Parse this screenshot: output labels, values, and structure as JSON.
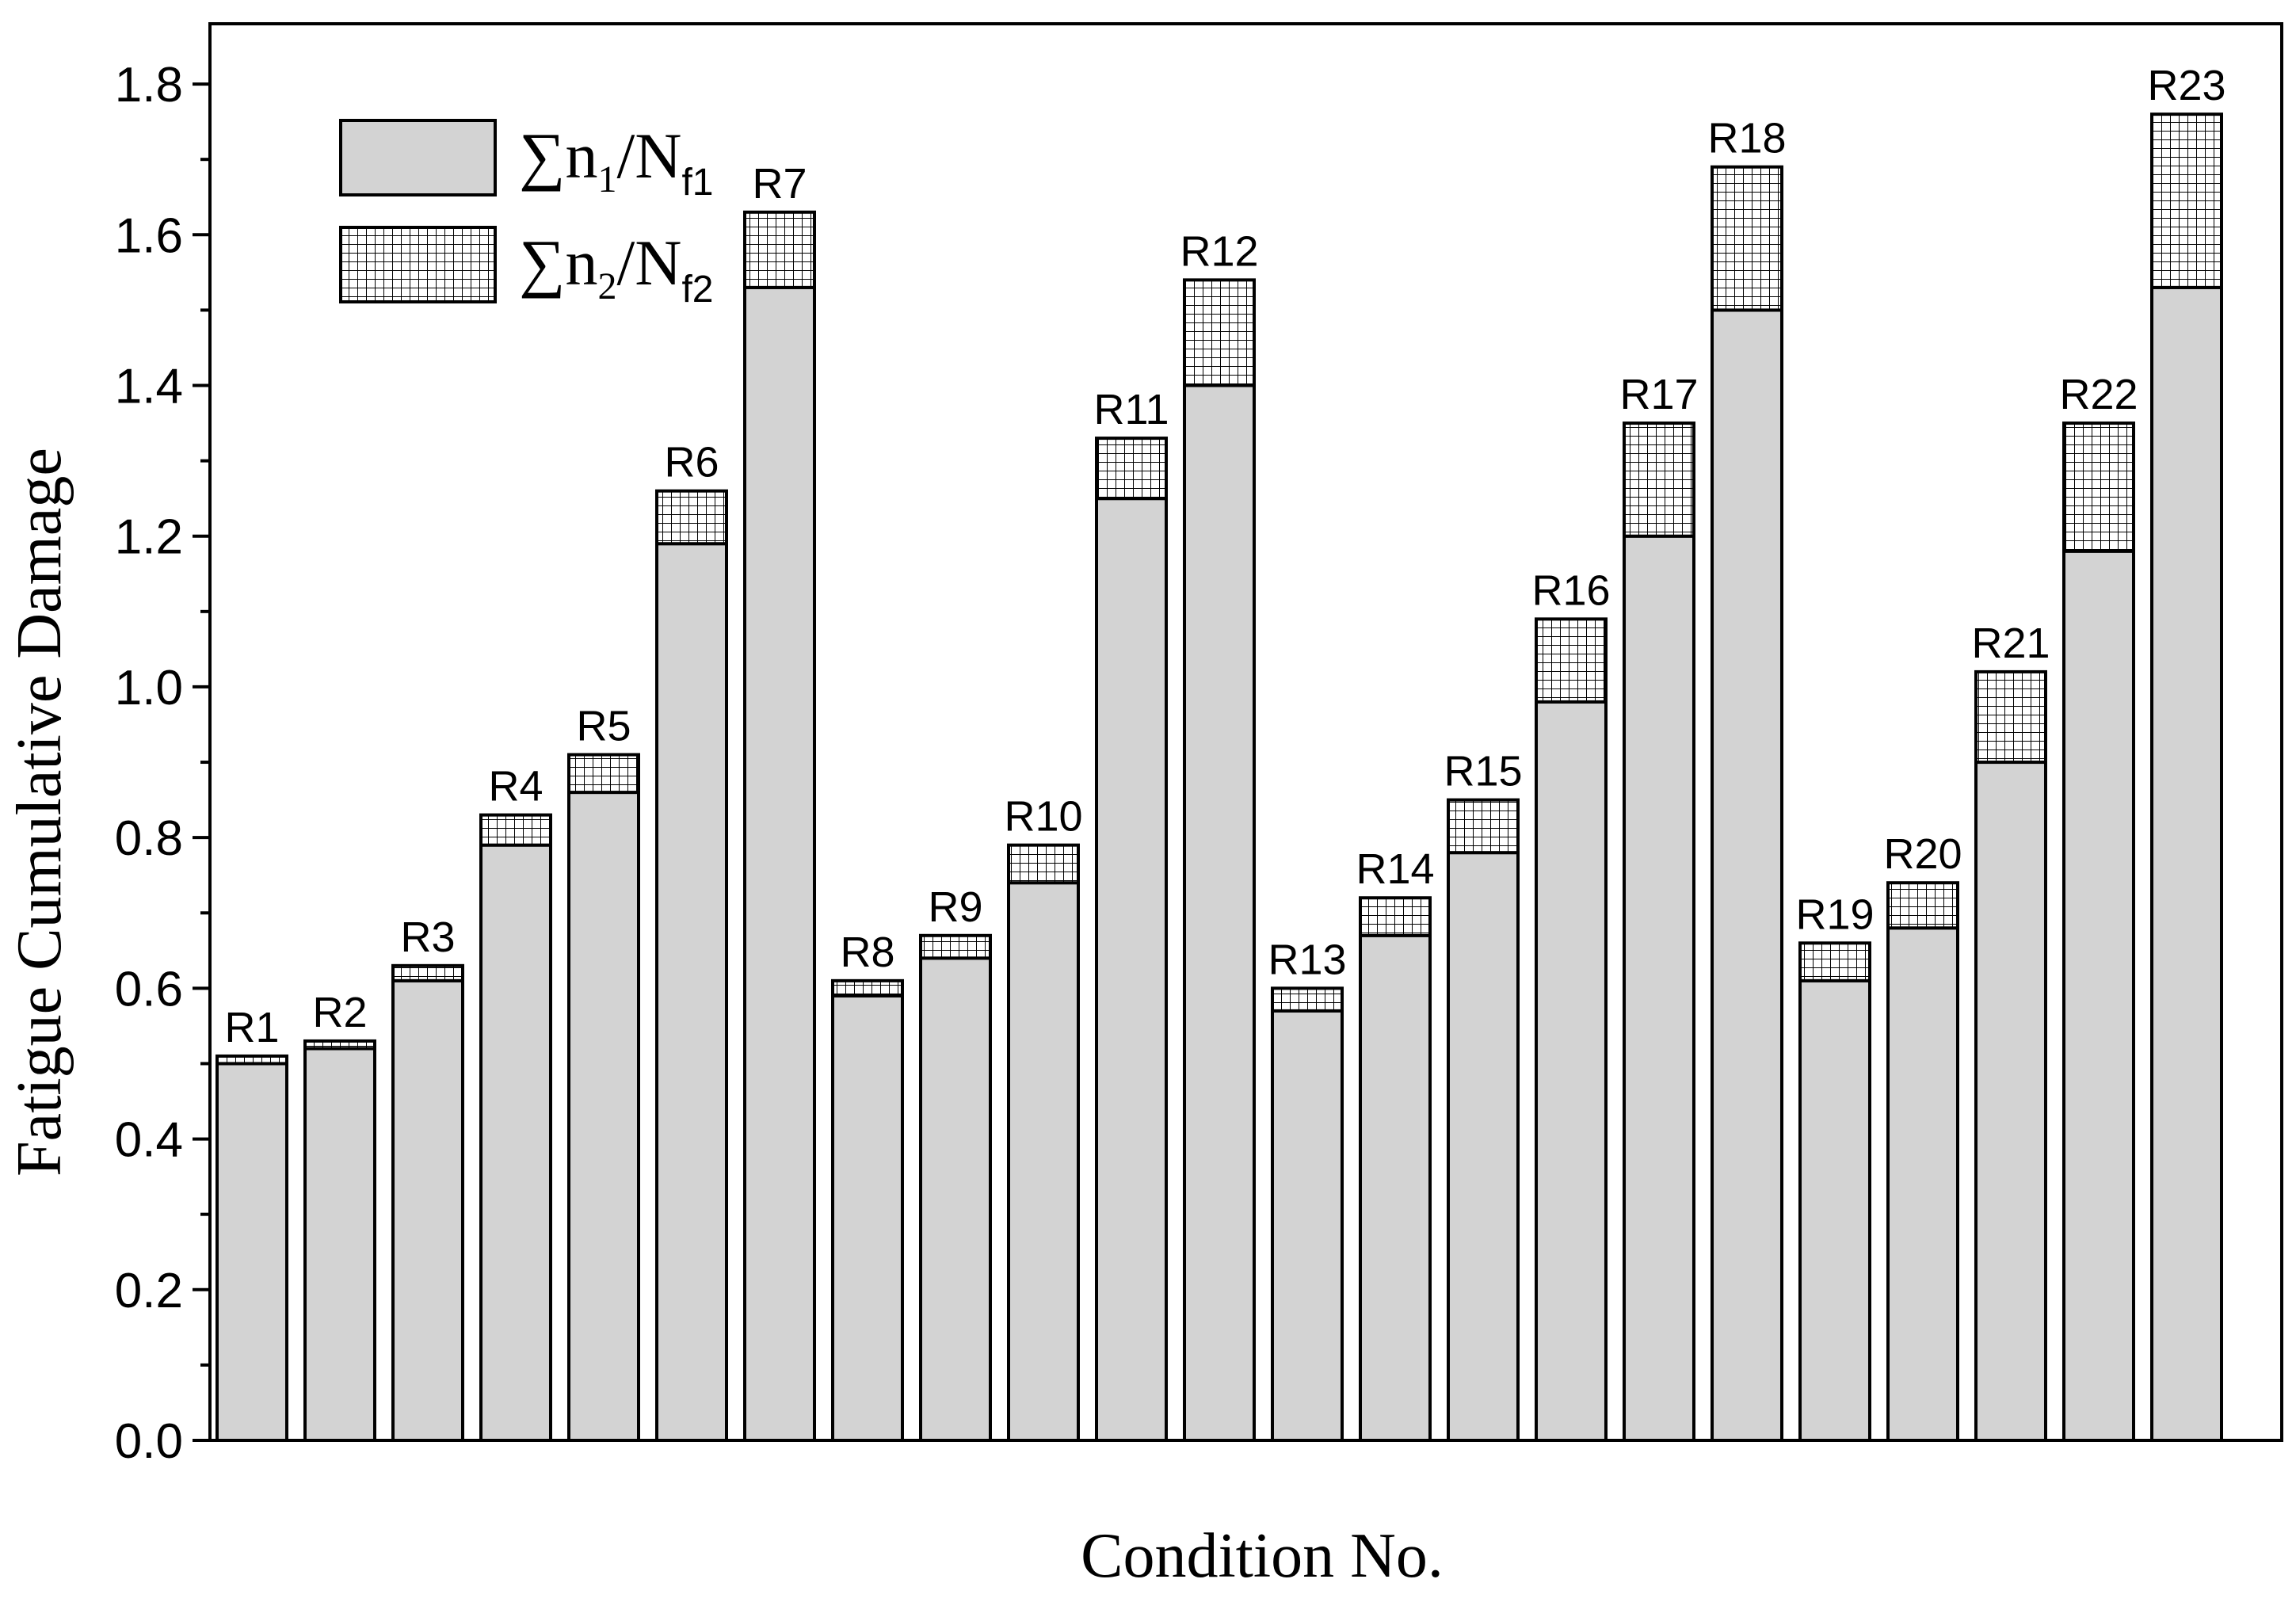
{
  "chart_data": {
    "type": "bar",
    "stacked": true,
    "xlabel": "Condition No.",
    "ylabel": "Fatigue Cumulative Damage",
    "ylim": [
      0.0,
      1.88
    ],
    "yticks": [
      "0.0",
      "0.2",
      "0.4",
      "0.6",
      "0.8",
      "1.0",
      "1.2",
      "1.4",
      "1.6",
      "1.8"
    ],
    "grid": false,
    "legend_position": "top-left",
    "categories": [
      "R1",
      "R2",
      "R3",
      "R4",
      "R5",
      "R6",
      "R7",
      "R8",
      "R9",
      "R10",
      "R11",
      "R12",
      "R13",
      "R14",
      "R15",
      "R16",
      "R17",
      "R18",
      "R19",
      "R20",
      "R21",
      "R22",
      "R23"
    ],
    "series": [
      {
        "name": "∑n1/Nf1",
        "legend": {
          "main": "∑n",
          "sub1": "1",
          "slash": "/N",
          "sub2": "f1"
        },
        "fill": "#d3d3d3",
        "pattern": "solid",
        "values": [
          0.5,
          0.52,
          0.61,
          0.79,
          0.86,
          1.19,
          1.53,
          0.59,
          0.64,
          0.74,
          1.25,
          1.4,
          0.57,
          0.67,
          0.78,
          0.98,
          1.2,
          1.5,
          0.61,
          0.68,
          0.9,
          1.18,
          1.53
        ]
      },
      {
        "name": "∑n2/Nf2",
        "legend": {
          "main": "∑n",
          "sub1": "2",
          "slash": "/N",
          "sub2": "f2"
        },
        "fill": "#ffffff",
        "pattern": "grid",
        "values": [
          0.01,
          0.01,
          0.02,
          0.04,
          0.05,
          0.07,
          0.1,
          0.02,
          0.03,
          0.05,
          0.08,
          0.14,
          0.03,
          0.05,
          0.07,
          0.11,
          0.15,
          0.19,
          0.05,
          0.06,
          0.12,
          0.17,
          0.23
        ]
      }
    ]
  }
}
